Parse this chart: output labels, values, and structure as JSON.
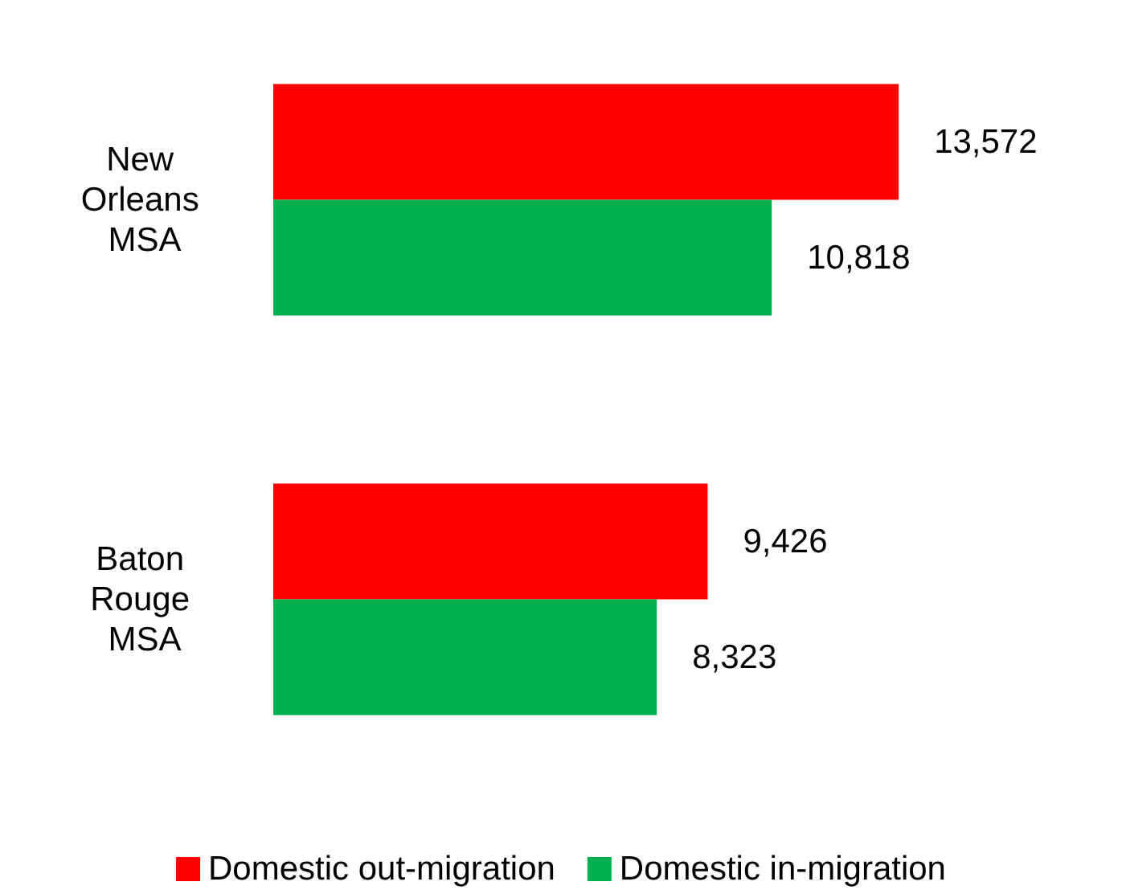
{
  "chart_data": {
    "type": "bar",
    "orientation": "horizontal",
    "categories": [
      "New Orleans MSA",
      "Baton Rouge MSA"
    ],
    "series": [
      {
        "name": "Domestic out-migration",
        "color": "#ff0000",
        "values": [
          13572,
          9426
        ],
        "value_labels": [
          "13,572",
          "9,426"
        ]
      },
      {
        "name": "Domestic in-migration",
        "color": "#00b050",
        "values": [
          10818,
          8323
        ],
        "value_labels": [
          "10,818",
          "8,323"
        ]
      }
    ],
    "legend": "bottom"
  }
}
